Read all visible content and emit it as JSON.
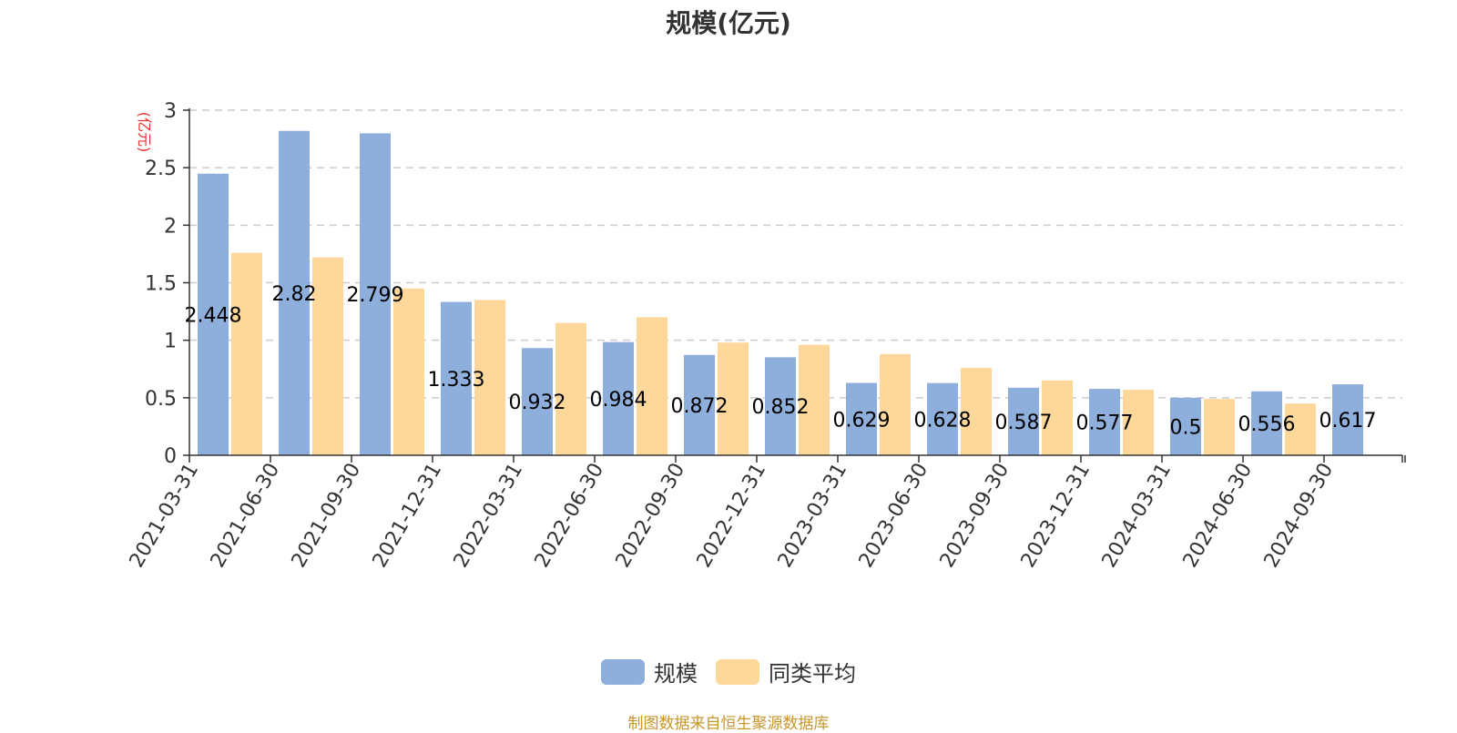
{
  "chart_data": {
    "type": "bar",
    "title": "规模(亿元)",
    "ylabel": "(亿元)",
    "xlabel": "",
    "ylim": [
      0,
      3
    ],
    "yticks": [
      0,
      0.5,
      1,
      1.5,
      2,
      2.5,
      3
    ],
    "ytick_labels": [
      "0",
      "0.5",
      "1",
      "1.5",
      "2",
      "2.5",
      "3"
    ],
    "grid": "horizontal dashed",
    "legend_position": "bottom-center",
    "categories": [
      "2021-03-31",
      "2021-06-30",
      "2021-09-30",
      "2021-12-31",
      "2022-03-31",
      "2022-06-30",
      "2022-09-30",
      "2022-12-31",
      "2023-03-31",
      "2023-06-30",
      "2023-09-30",
      "2023-12-31",
      "2024-03-31",
      "2024-06-30",
      "2024-09-30"
    ],
    "series": [
      {
        "name": "规模",
        "color": "#8eaedb",
        "values": [
          2.448,
          2.82,
          2.799,
          1.333,
          0.932,
          0.984,
          0.872,
          0.852,
          0.629,
          0.628,
          0.587,
          0.577,
          0.5,
          0.556,
          0.617
        ],
        "data_labels": [
          "2.448",
          "2.82",
          "2.799",
          "1.333",
          "0.932",
          "0.984",
          "0.872",
          "0.852",
          "0.629",
          "0.628",
          "0.587",
          "0.577",
          "0.5",
          "0.556",
          "0.617"
        ]
      },
      {
        "name": "同类平均",
        "color": "#fdd89a",
        "values": [
          1.76,
          1.72,
          1.45,
          1.35,
          1.15,
          1.2,
          0.98,
          0.96,
          0.88,
          0.76,
          0.65,
          0.57,
          0.49,
          0.45,
          null
        ]
      }
    ]
  },
  "colors": {
    "unit_label": "#e8312f",
    "source_note": "#c8952c",
    "axis": "#333333",
    "grid": "#cccccc"
  },
  "legend": {
    "items": [
      {
        "label": "规模",
        "color": "#8eaedb"
      },
      {
        "label": "同类平均",
        "color": "#fdd89a"
      }
    ]
  },
  "footer": {
    "source": "制图数据来自恒生聚源数据库"
  }
}
